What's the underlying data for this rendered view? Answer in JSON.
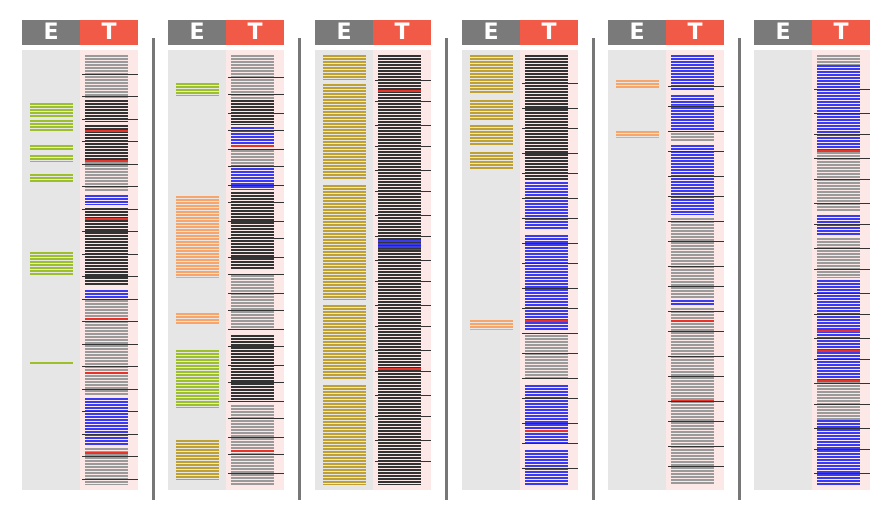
{
  "header_labels": {
    "e": "E",
    "t": "T"
  },
  "colors": {
    "e_header": "#7a7a7a",
    "t_header": "#f05a47",
    "e_column": "#e6e6e6",
    "t_column": "#fde8e8",
    "green": "#9cbf2b",
    "orange": "#f7a56a",
    "olive": "#bfa032",
    "black": "#333333",
    "gray": "#9a9a9a",
    "blue": "#3a3af0",
    "red": "#e8322a",
    "divider": "#777777"
  },
  "panel_count": 6
}
